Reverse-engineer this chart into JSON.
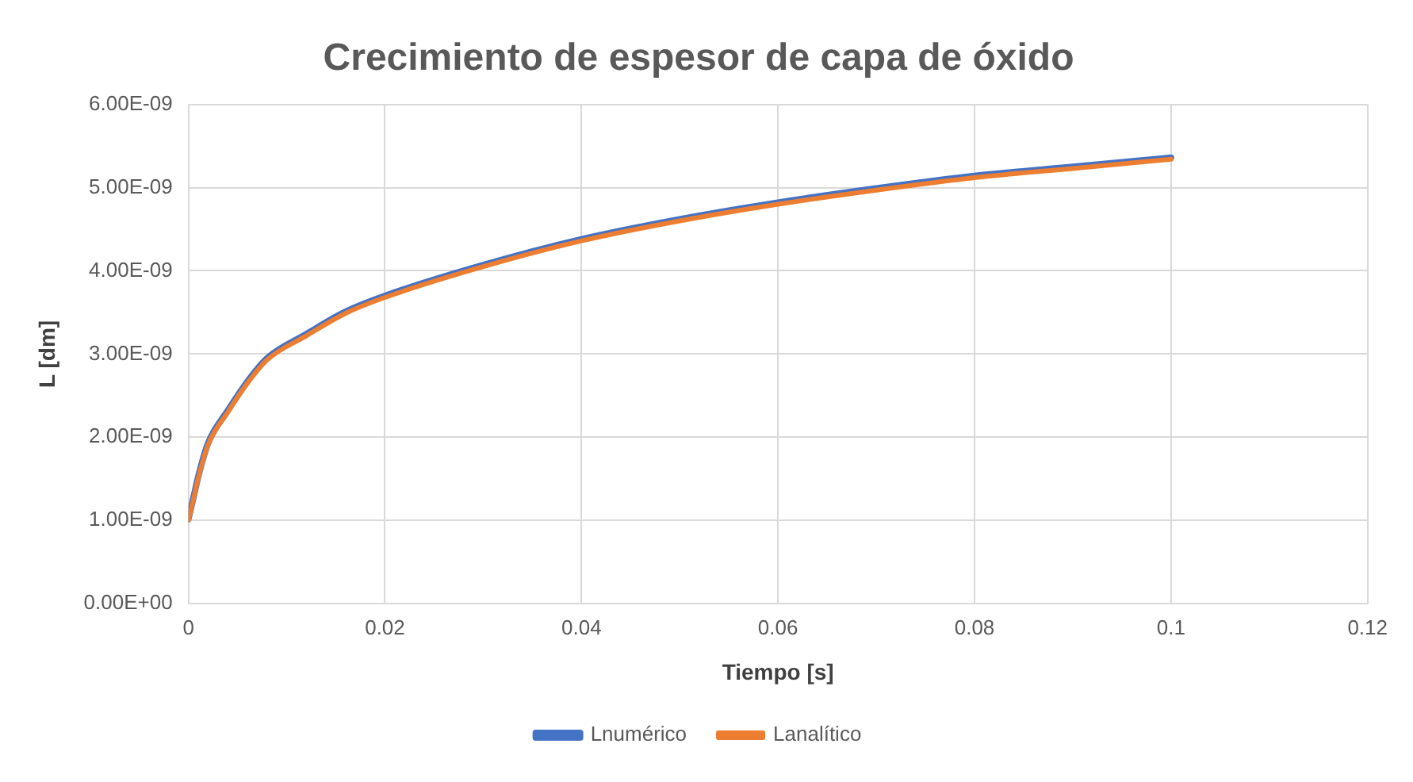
{
  "chart_data": {
    "type": "line",
    "title": "Crecimiento de espesor de capa de óxido",
    "xlabel": "Tiempo [s]",
    "ylabel": "L [dm]",
    "x": [
      0,
      0.0005,
      0.001,
      0.002,
      0.004,
      0.006,
      0.008,
      0.012,
      0.016,
      0.02,
      0.03,
      0.04,
      0.05,
      0.06,
      0.07,
      0.08,
      0.09,
      0.1
    ],
    "series": [
      {
        "name": "Lnumérico",
        "color": "#4472c4",
        "values": [
          1.02e-09,
          1.27e-09,
          1.53e-09,
          1.93e-09,
          2.32e-09,
          2.67e-09,
          2.95e-09,
          3.24e-09,
          3.51e-09,
          3.7e-09,
          4.07e-09,
          4.38e-09,
          4.62e-09,
          4.82e-09,
          4.99e-09,
          5.14e-09,
          5.25e-09,
          5.36e-09
        ]
      },
      {
        "name": "Lanalítico",
        "color": "#ed7d31",
        "values": [
          1e-09,
          1.25e-09,
          1.51e-09,
          1.91e-09,
          2.3e-09,
          2.65e-09,
          2.93e-09,
          3.22e-09,
          3.49e-09,
          3.68e-09,
          4.05e-09,
          4.36e-09,
          4.6e-09,
          4.8e-09,
          4.97e-09,
          5.12e-09,
          5.23e-09,
          5.34e-09
        ]
      }
    ],
    "xlim": [
      0,
      0.12
    ],
    "xticks": [
      0,
      0.02,
      0.04,
      0.06,
      0.08,
      0.1,
      0.12
    ],
    "ylim": [
      0,
      6e-09
    ],
    "yticks": [
      {
        "value": 0,
        "label": "0.00E+00"
      },
      {
        "value": 1e-09,
        "label": "1.00E-09"
      },
      {
        "value": 2e-09,
        "label": "2.00E-09"
      },
      {
        "value": 3e-09,
        "label": "3.00E-09"
      },
      {
        "value": 4e-09,
        "label": "4.00E-09"
      },
      {
        "value": 5e-09,
        "label": "5.00E-09"
      },
      {
        "value": 6e-09,
        "label": "6.00E-09"
      }
    ],
    "grid": true,
    "legend": "bottom",
    "marker": "none",
    "line_style": "solid"
  }
}
